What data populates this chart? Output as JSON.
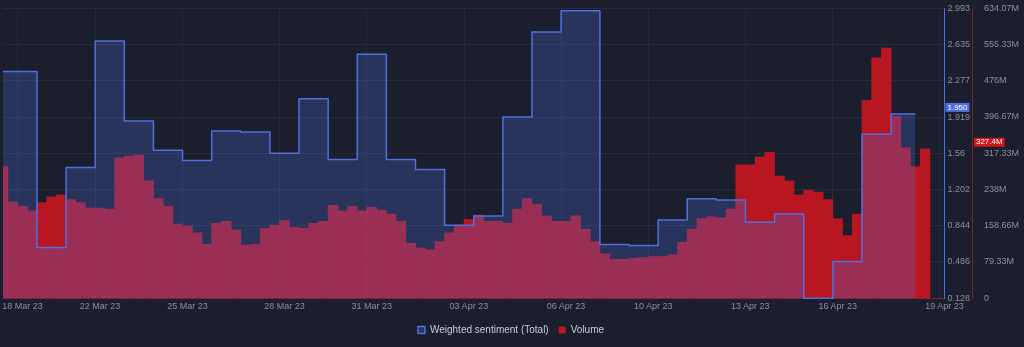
{
  "chart_data": {
    "type": "bar",
    "categories": [
      null,
      null,
      "18 Mar 23",
      null,
      null,
      null,
      null,
      null,
      null,
      null,
      "22 Mar 23",
      null,
      null,
      null,
      null,
      null,
      null,
      null,
      null,
      "25 Mar 23",
      null,
      null,
      null,
      null,
      null,
      null,
      null,
      null,
      null,
      "28 Mar 23",
      null,
      null,
      null,
      null,
      null,
      null,
      null,
      null,
      "31 Mar 23",
      null,
      null,
      null,
      null,
      null,
      null,
      null,
      null,
      null,
      "03 Apr 23",
      null,
      null,
      null,
      null,
      null,
      null,
      null,
      null,
      null,
      "06 Apr 23",
      null,
      null,
      null,
      null,
      null,
      null,
      null,
      null,
      "10 Apr 23",
      null,
      null,
      null,
      null,
      null,
      null,
      null,
      null,
      null,
      "13 Apr 23",
      null,
      null,
      null,
      null,
      null,
      null,
      null,
      null,
      "16 Apr 23",
      null,
      null,
      null,
      null,
      null,
      null,
      null,
      null,
      null,
      null,
      "19 Apr 23"
    ],
    "ylim": [
      0.128,
      2.993
    ],
    "yticks": [
      0.128,
      0.486,
      0.844,
      1.202,
      1.56,
      1.919,
      2.277,
      2.635,
      2.993
    ],
    "y2lim": [
      0,
      634.07
    ],
    "y2ticks": [
      0,
      {
        "value": 79.33,
        "label": "79.33M"
      },
      {
        "value": 158.66,
        "label": "158.66M"
      },
      {
        "value": 238,
        "label": "238M"
      },
      {
        "value": 317.33,
        "label": "317.33M"
      },
      {
        "value": 396.67,
        "label": "396.67M"
      },
      {
        "value": 476,
        "label": "476M"
      },
      {
        "value": 555.33,
        "label": "555.33M"
      },
      {
        "value": 634.07,
        "label": "634.07M"
      }
    ],
    "grid": true,
    "legend": "bottom",
    "annotations": [
      "1.950",
      "327.4M"
    ],
    "series": [
      {
        "name": "Weighted sentiment (Total)",
        "type": "step",
        "axis": "y",
        "color": "#4f6fe0",
        "values": [
          2.37,
          2.37,
          2.37,
          2.37,
          0.63,
          0.63,
          0.63,
          1.42,
          1.42,
          1.42,
          2.67,
          2.67,
          2.67,
          1.88,
          1.88,
          1.88,
          1.59,
          1.59,
          1.59,
          1.49,
          1.49,
          1.49,
          1.78,
          1.78,
          1.78,
          1.77,
          1.77,
          1.77,
          1.56,
          1.56,
          1.56,
          2.1,
          2.1,
          2.1,
          1.5,
          1.5,
          1.5,
          2.54,
          2.54,
          2.54,
          1.5,
          1.5,
          1.5,
          1.4,
          1.4,
          1.4,
          0.85,
          0.85,
          0.85,
          0.94,
          0.94,
          0.94,
          1.92,
          1.92,
          1.92,
          2.76,
          2.76,
          2.76,
          2.97,
          2.97,
          2.97,
          2.97,
          0.66,
          0.66,
          0.66,
          0.65,
          0.65,
          0.65,
          0.9,
          0.9,
          0.9,
          1.11,
          1.11,
          1.11,
          1.1,
          1.1,
          1.1,
          0.88,
          0.88,
          0.88,
          0.96,
          0.96,
          0.96,
          0.128,
          0.128,
          0.128,
          0.49,
          0.49,
          0.49,
          1.75,
          1.75,
          1.75,
          1.95,
          1.95,
          1.95,
          null,
          null,
          null
        ]
      },
      {
        "name": "Volume",
        "axis": "y2",
        "color": "#d2161e",
        "values": [
          288,
          211,
          201,
          191,
          209,
          222,
          226,
          216,
          209,
          197,
          197,
          195,
          307,
          311,
          313,
          257,
          218,
          201,
          162,
          158,
          143,
          118,
          164,
          168,
          149,
          116,
          118,
          153,
          160,
          170,
          155,
          153,
          164,
          168,
          203,
          191,
          201,
          191,
          199,
          193,
          184,
          168,
          120,
          110,
          106,
          124,
          143,
          160,
          172,
          182,
          168,
          168,
          164,
          195,
          218,
          205,
          180,
          168,
          168,
          180,
          151,
          124,
          97,
          85,
          85,
          87,
          89,
          91,
          91,
          95,
          122,
          151,
          174,
          178,
          176,
          195,
          292,
          292,
          309,
          319,
          267,
          257,
          226,
          236,
          232,
          216,
          174,
          137,
          184,
          433,
          526,
          547,
          398,
          329,
          288,
          327,
          null,
          null
        ]
      }
    ]
  }
}
